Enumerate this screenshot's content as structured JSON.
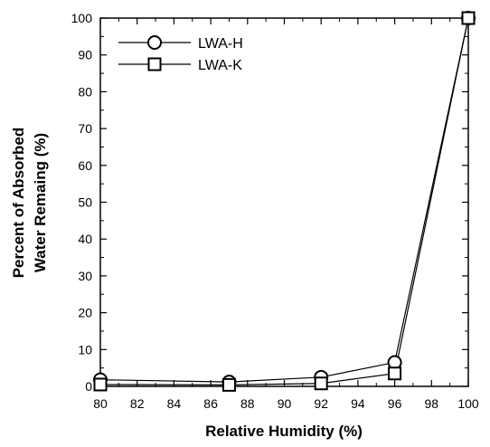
{
  "chart_data": {
    "type": "line",
    "title": "",
    "xlabel": "Relative Humidity (%)",
    "ylabel_lines": [
      "Percent of Absorbed",
      "Water Remaing (%)"
    ],
    "xlim": [
      80,
      100
    ],
    "ylim": [
      0,
      100
    ],
    "x_ticks": [
      "80",
      "82",
      "84",
      "86",
      "88",
      "90",
      "92",
      "94",
      "96",
      "98",
      "100"
    ],
    "y_ticks": [
      "0",
      "10",
      "20",
      "30",
      "40",
      "50",
      "60",
      "70",
      "80",
      "90",
      "100"
    ],
    "grid": false,
    "legend_position": "top-left",
    "series": [
      {
        "name": "LWA-H",
        "marker": "circle",
        "color": "#000000",
        "x": [
          80,
          87,
          92,
          96,
          100
        ],
        "y": [
          1.8,
          1.2,
          2.5,
          6.5,
          100
        ]
      },
      {
        "name": "LWA-K",
        "marker": "square",
        "color": "#000000",
        "x": [
          80,
          87,
          92,
          96,
          100
        ],
        "y": [
          0.5,
          0.4,
          0.8,
          3.5,
          100
        ]
      }
    ]
  }
}
